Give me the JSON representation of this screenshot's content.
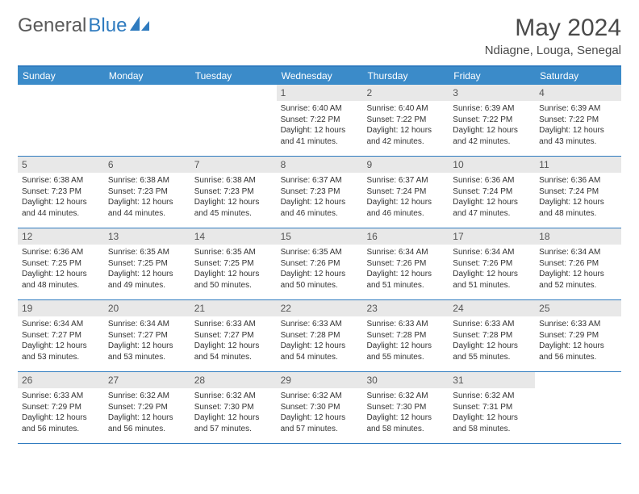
{
  "logo": {
    "text_gray": "General",
    "text_blue": "Blue"
  },
  "title": "May 2024",
  "location": "Ndiagne, Louga, Senegal",
  "colors": {
    "header_bg": "#3b8bc9",
    "border": "#2f7bbf",
    "daynum_bg": "#e8e8e8",
    "text": "#333333"
  },
  "day_headers": [
    "Sunday",
    "Monday",
    "Tuesday",
    "Wednesday",
    "Thursday",
    "Friday",
    "Saturday"
  ],
  "weeks": [
    [
      {
        "num": "",
        "sunrise": "",
        "sunset": "",
        "daylight": ""
      },
      {
        "num": "",
        "sunrise": "",
        "sunset": "",
        "daylight": ""
      },
      {
        "num": "",
        "sunrise": "",
        "sunset": "",
        "daylight": ""
      },
      {
        "num": "1",
        "sunrise": "Sunrise: 6:40 AM",
        "sunset": "Sunset: 7:22 PM",
        "daylight": "Daylight: 12 hours and 41 minutes."
      },
      {
        "num": "2",
        "sunrise": "Sunrise: 6:40 AM",
        "sunset": "Sunset: 7:22 PM",
        "daylight": "Daylight: 12 hours and 42 minutes."
      },
      {
        "num": "3",
        "sunrise": "Sunrise: 6:39 AM",
        "sunset": "Sunset: 7:22 PM",
        "daylight": "Daylight: 12 hours and 42 minutes."
      },
      {
        "num": "4",
        "sunrise": "Sunrise: 6:39 AM",
        "sunset": "Sunset: 7:22 PM",
        "daylight": "Daylight: 12 hours and 43 minutes."
      }
    ],
    [
      {
        "num": "5",
        "sunrise": "Sunrise: 6:38 AM",
        "sunset": "Sunset: 7:23 PM",
        "daylight": "Daylight: 12 hours and 44 minutes."
      },
      {
        "num": "6",
        "sunrise": "Sunrise: 6:38 AM",
        "sunset": "Sunset: 7:23 PM",
        "daylight": "Daylight: 12 hours and 44 minutes."
      },
      {
        "num": "7",
        "sunrise": "Sunrise: 6:38 AM",
        "sunset": "Sunset: 7:23 PM",
        "daylight": "Daylight: 12 hours and 45 minutes."
      },
      {
        "num": "8",
        "sunrise": "Sunrise: 6:37 AM",
        "sunset": "Sunset: 7:23 PM",
        "daylight": "Daylight: 12 hours and 46 minutes."
      },
      {
        "num": "9",
        "sunrise": "Sunrise: 6:37 AM",
        "sunset": "Sunset: 7:24 PM",
        "daylight": "Daylight: 12 hours and 46 minutes."
      },
      {
        "num": "10",
        "sunrise": "Sunrise: 6:36 AM",
        "sunset": "Sunset: 7:24 PM",
        "daylight": "Daylight: 12 hours and 47 minutes."
      },
      {
        "num": "11",
        "sunrise": "Sunrise: 6:36 AM",
        "sunset": "Sunset: 7:24 PM",
        "daylight": "Daylight: 12 hours and 48 minutes."
      }
    ],
    [
      {
        "num": "12",
        "sunrise": "Sunrise: 6:36 AM",
        "sunset": "Sunset: 7:25 PM",
        "daylight": "Daylight: 12 hours and 48 minutes."
      },
      {
        "num": "13",
        "sunrise": "Sunrise: 6:35 AM",
        "sunset": "Sunset: 7:25 PM",
        "daylight": "Daylight: 12 hours and 49 minutes."
      },
      {
        "num": "14",
        "sunrise": "Sunrise: 6:35 AM",
        "sunset": "Sunset: 7:25 PM",
        "daylight": "Daylight: 12 hours and 50 minutes."
      },
      {
        "num": "15",
        "sunrise": "Sunrise: 6:35 AM",
        "sunset": "Sunset: 7:26 PM",
        "daylight": "Daylight: 12 hours and 50 minutes."
      },
      {
        "num": "16",
        "sunrise": "Sunrise: 6:34 AM",
        "sunset": "Sunset: 7:26 PM",
        "daylight": "Daylight: 12 hours and 51 minutes."
      },
      {
        "num": "17",
        "sunrise": "Sunrise: 6:34 AM",
        "sunset": "Sunset: 7:26 PM",
        "daylight": "Daylight: 12 hours and 51 minutes."
      },
      {
        "num": "18",
        "sunrise": "Sunrise: 6:34 AM",
        "sunset": "Sunset: 7:26 PM",
        "daylight": "Daylight: 12 hours and 52 minutes."
      }
    ],
    [
      {
        "num": "19",
        "sunrise": "Sunrise: 6:34 AM",
        "sunset": "Sunset: 7:27 PM",
        "daylight": "Daylight: 12 hours and 53 minutes."
      },
      {
        "num": "20",
        "sunrise": "Sunrise: 6:34 AM",
        "sunset": "Sunset: 7:27 PM",
        "daylight": "Daylight: 12 hours and 53 minutes."
      },
      {
        "num": "21",
        "sunrise": "Sunrise: 6:33 AM",
        "sunset": "Sunset: 7:27 PM",
        "daylight": "Daylight: 12 hours and 54 minutes."
      },
      {
        "num": "22",
        "sunrise": "Sunrise: 6:33 AM",
        "sunset": "Sunset: 7:28 PM",
        "daylight": "Daylight: 12 hours and 54 minutes."
      },
      {
        "num": "23",
        "sunrise": "Sunrise: 6:33 AM",
        "sunset": "Sunset: 7:28 PM",
        "daylight": "Daylight: 12 hours and 55 minutes."
      },
      {
        "num": "24",
        "sunrise": "Sunrise: 6:33 AM",
        "sunset": "Sunset: 7:28 PM",
        "daylight": "Daylight: 12 hours and 55 minutes."
      },
      {
        "num": "25",
        "sunrise": "Sunrise: 6:33 AM",
        "sunset": "Sunset: 7:29 PM",
        "daylight": "Daylight: 12 hours and 56 minutes."
      }
    ],
    [
      {
        "num": "26",
        "sunrise": "Sunrise: 6:33 AM",
        "sunset": "Sunset: 7:29 PM",
        "daylight": "Daylight: 12 hours and 56 minutes."
      },
      {
        "num": "27",
        "sunrise": "Sunrise: 6:32 AM",
        "sunset": "Sunset: 7:29 PM",
        "daylight": "Daylight: 12 hours and 56 minutes."
      },
      {
        "num": "28",
        "sunrise": "Sunrise: 6:32 AM",
        "sunset": "Sunset: 7:30 PM",
        "daylight": "Daylight: 12 hours and 57 minutes."
      },
      {
        "num": "29",
        "sunrise": "Sunrise: 6:32 AM",
        "sunset": "Sunset: 7:30 PM",
        "daylight": "Daylight: 12 hours and 57 minutes."
      },
      {
        "num": "30",
        "sunrise": "Sunrise: 6:32 AM",
        "sunset": "Sunset: 7:30 PM",
        "daylight": "Daylight: 12 hours and 58 minutes."
      },
      {
        "num": "31",
        "sunrise": "Sunrise: 6:32 AM",
        "sunset": "Sunset: 7:31 PM",
        "daylight": "Daylight: 12 hours and 58 minutes."
      },
      {
        "num": "",
        "sunrise": "",
        "sunset": "",
        "daylight": ""
      }
    ]
  ]
}
